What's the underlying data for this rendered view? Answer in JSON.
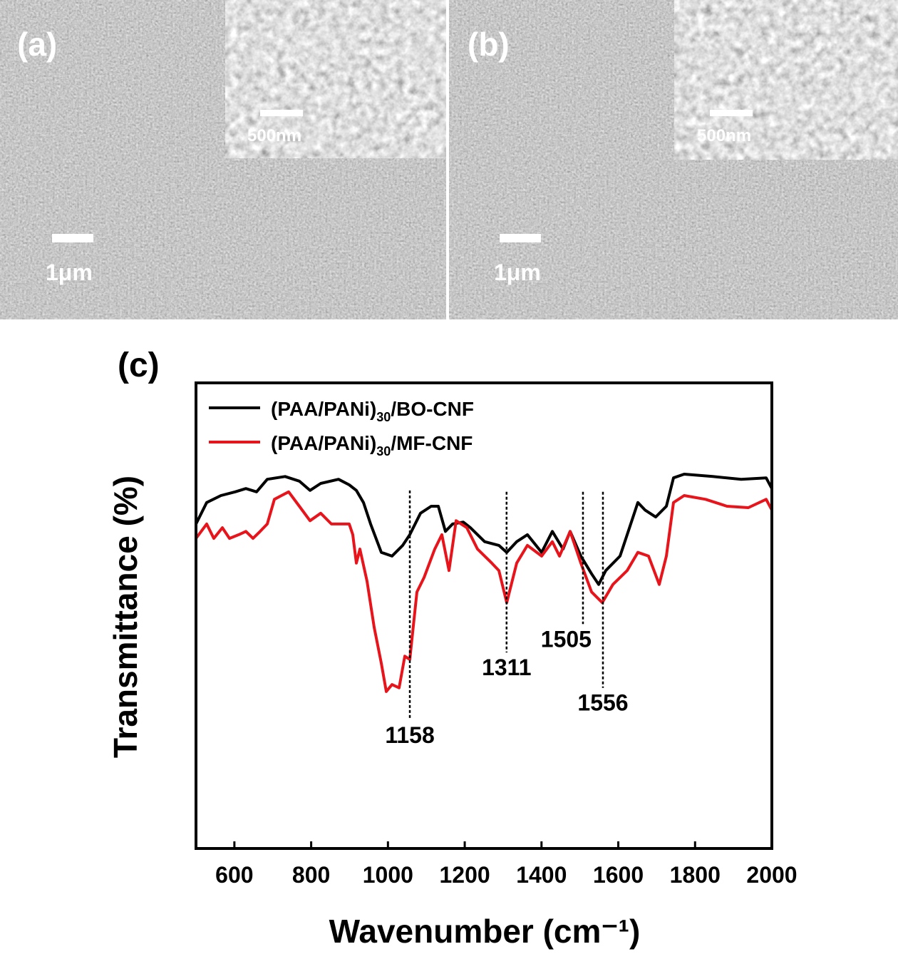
{
  "images": [
    {
      "label": "(a)",
      "scale_bar": "1μm",
      "inset_scale_bar": "500nm"
    },
    {
      "label": "(b)",
      "scale_bar": "1μm",
      "inset_scale_bar": "500nm"
    }
  ],
  "chart_data": {
    "type": "line",
    "panel_label": "(c)",
    "x_label": "Wavenumber (cm⁻¹)",
    "y_label": "Transmittance (%)",
    "xlim": [
      500,
      2000
    ],
    "ylim": [
      0,
      100
    ],
    "xticks": [
      600,
      800,
      1000,
      1200,
      1400,
      1600,
      1800,
      2000
    ],
    "legend": "upper left",
    "series": [
      {
        "name": "(PAA/PANi)30/BO-CNF",
        "color": "#000000",
        "x": [
          500,
          527.8,
          565.0,
          602.1,
          630.0,
          657.8,
          685.6,
          732.0,
          769.2,
          797.0,
          824.9,
          871.3,
          899.1,
          917.7,
          936.3,
          954.8,
          982.7,
          1010.5,
          1038.4,
          1057.0,
          1084.8,
          1112.6,
          1131.2,
          1149.7,
          1168.3,
          1196.2,
          1214.7,
          1251.8,
          1289.0,
          1309.4,
          1335.4,
          1363.2,
          1400.4,
          1428.2,
          1456.0,
          1474.6,
          1502.5,
          1530.3,
          1548.9,
          1567.4,
          1604.6,
          1651.0,
          1669.5,
          1697.4,
          1725.2,
          1743.8,
          1771.6,
          1845.9,
          1920.1,
          1985.1,
          2000
        ],
        "values": [
          69.7,
          74.3,
          75.8,
          76.6,
          77.3,
          76.6,
          79.3,
          79.9,
          78.9,
          76.9,
          78.4,
          79.3,
          78.1,
          76.9,
          74.3,
          69.7,
          63.6,
          62.8,
          65.1,
          67.4,
          72.0,
          73.5,
          73.5,
          68.1,
          69.7,
          70.1,
          68.9,
          65.9,
          65.1,
          63.6,
          65.9,
          67.4,
          63.6,
          68.1,
          64.3,
          68.1,
          62.8,
          59.0,
          56.7,
          59.7,
          62.8,
          74.3,
          72.7,
          71.2,
          73.5,
          79.6,
          80.4,
          79.9,
          79.3,
          79.6,
          77.3
        ]
      },
      {
        "name": "(PAA/PANi)30/MF-CNF",
        "color": "#e8141b",
        "x": [
          500,
          527.8,
          546.4,
          568.7,
          587.3,
          611.4,
          630.0,
          648.5,
          667.1,
          685.6,
          704.2,
          722.8,
          741.3,
          769.2,
          797.0,
          824.9,
          852.7,
          880.6,
          899.1,
          908.4,
          917.7,
          927.0,
          945.5,
          964.1,
          982.7,
          995.7,
          1010.5,
          1029.1,
          1044.0,
          1057.0,
          1075.5,
          1094.1,
          1121.9,
          1140.5,
          1159.0,
          1177.6,
          1205.4,
          1233.3,
          1270.4,
          1289.0,
          1309.4,
          1335.4,
          1363.2,
          1400.4,
          1428.2,
          1446.8,
          1474.6,
          1502.5,
          1530.3,
          1558.1,
          1586.0,
          1623.1,
          1651.0,
          1678.8,
          1706.7,
          1725.2,
          1743.8,
          1771.6,
          1827.3,
          1883.0,
          1938.7,
          1985.1,
          2000
        ],
        "values": [
          66.6,
          69.7,
          66.6,
          68.9,
          66.6,
          67.4,
          68.1,
          66.6,
          68.1,
          69.7,
          75.0,
          75.8,
          76.6,
          73.5,
          70.4,
          72.0,
          69.7,
          69.7,
          69.7,
          67.4,
          61.3,
          64.3,
          57.4,
          47.5,
          39.8,
          33.7,
          35.2,
          34.5,
          41.3,
          40.6,
          55.1,
          58.2,
          64.3,
          67.4,
          59.7,
          70.4,
          68.9,
          64.3,
          61.3,
          59.7,
          52.8,
          61.3,
          65.1,
          62.8,
          65.9,
          62.8,
          68.1,
          61.3,
          55.1,
          52.8,
          56.7,
          59.7,
          63.6,
          62.8,
          56.7,
          62.8,
          74.3,
          75.8,
          75.0,
          73.5,
          73.2,
          75.0,
          72.7
        ]
      }
    ],
    "annotations": [
      {
        "text": "1158",
        "x": 1057,
        "y": [
          76.9,
          27.6
        ]
      },
      {
        "text": "1311",
        "x": 1309,
        "y": [
          76.6,
          42.1
        ]
      },
      {
        "text": "1505",
        "x": 1508,
        "y": [
          76.6,
          48.2
        ]
      },
      {
        "text": "1556",
        "x": 1560,
        "y": [
          76.6,
          34.5
        ]
      }
    ]
  }
}
